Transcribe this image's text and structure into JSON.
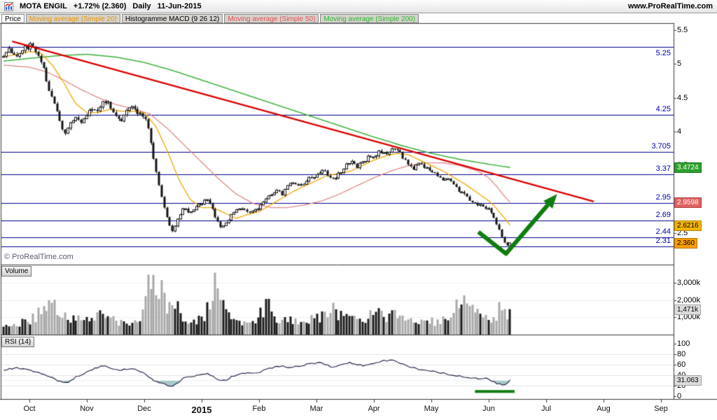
{
  "header": {
    "symbol": "MOTA ENGIL",
    "change": "+1.72% (2.360)",
    "timeframe": "Daily",
    "date": "11-Jun-2015",
    "site": "www.ProRealTime.com"
  },
  "legend": {
    "items": [
      {
        "id": "price",
        "label": "Price",
        "fg": "#000000",
        "bg": "#ffffff"
      },
      {
        "id": "ma20",
        "label": "Moving average (Simple 20)",
        "fg": "#e69500",
        "bg": "#d6d3ce"
      },
      {
        "id": "macd",
        "label": "Histogramme MACD (9 26 12)",
        "fg": "#000000",
        "bg": "#d6d3ce"
      },
      {
        "id": "ma50",
        "label": "Moving average (Simple 50)",
        "fg": "#e05050",
        "bg": "#d6d3ce"
      },
      {
        "id": "ma200",
        "label": "Moving average (Simple 200)",
        "fg": "#2db52d",
        "bg": "#d6d3ce"
      }
    ]
  },
  "panes": {
    "volume_label": "Volume",
    "rsi_label": "RSI (14)"
  },
  "copyright": "© ProRealTime.com",
  "chart_data": {
    "type": "candlestick",
    "title": "MOTA ENGIL Daily 11-Jun-2015",
    "last_price": 2.36,
    "change_pct": 1.72,
    "x_axis": {
      "labels": [
        "Oct",
        "Nov",
        "Dec",
        "2015",
        "Feb",
        "Mar",
        "Apr",
        "May",
        "Jun",
        "Jul",
        "Aug",
        "Sep"
      ],
      "bold_index": 3,
      "unit": "months from 2014-10-01"
    },
    "price_axis": {
      "range": [
        2.05,
        5.6
      ],
      "ticks": [
        "5.5",
        "5",
        "4.5",
        "4",
        "3.5",
        "2.5"
      ],
      "tick_values": [
        5.5,
        5,
        4.5,
        4,
        3.5,
        2.5
      ]
    },
    "support_resistance_levels": [
      5.25,
      4.25,
      3.705,
      3.37,
      2.95,
      2.69,
      2.44,
      2.31
    ],
    "level_color": "#00008c",
    "axis_value_boxes": [
      {
        "label": "3.4724",
        "value": 3.4724,
        "series": "ma200",
        "bg": "#2ca02c",
        "fg": "#ffffff"
      },
      {
        "label": "2.9598",
        "value": 2.9598,
        "series": "ma50",
        "bg": "#e06060",
        "fg": "#ffffff"
      },
      {
        "label": "2.6216",
        "value": 2.6216,
        "series": "ma20",
        "bg": "#f2b300",
        "fg": "#000000"
      },
      {
        "label": "2.360",
        "value": 2.36,
        "series": "last-price",
        "bg": "#f59d00",
        "fg": "#000000"
      }
    ],
    "series_colors": {
      "ma20": "#f0a800",
      "ma50": "#e08a8a",
      "ma200": "#46b446",
      "candle": "#141414",
      "trend_line": "#dd0000",
      "annotation": "#0e7d0e"
    },
    "close_path": [
      [
        -0.45,
        5.15
      ],
      [
        -0.35,
        5.22
      ],
      [
        -0.25,
        5.12
      ],
      [
        -0.15,
        5.18
      ],
      [
        -0.05,
        5.25
      ],
      [
        0.05,
        5.28
      ],
      [
        0.15,
        5.1
      ],
      [
        0.25,
        4.92
      ],
      [
        0.35,
        4.6
      ],
      [
        0.45,
        4.35
      ],
      [
        0.55,
        4.1
      ],
      [
        0.62,
        3.97
      ],
      [
        0.7,
        4.12
      ],
      [
        0.8,
        4.22
      ],
      [
        0.9,
        4.12
      ],
      [
        1.0,
        4.26
      ],
      [
        1.1,
        4.35
      ],
      [
        1.2,
        4.3
      ],
      [
        1.3,
        4.48
      ],
      [
        1.4,
        4.38
      ],
      [
        1.5,
        4.22
      ],
      [
        1.6,
        4.18
      ],
      [
        1.7,
        4.32
      ],
      [
        1.8,
        4.36
      ],
      [
        1.9,
        4.28
      ],
      [
        2.0,
        4.22
      ],
      [
        2.08,
        4.0
      ],
      [
        2.16,
        3.62
      ],
      [
        2.24,
        3.25
      ],
      [
        2.32,
        3.0
      ],
      [
        2.4,
        2.72
      ],
      [
        2.48,
        2.52
      ],
      [
        2.55,
        2.62
      ],
      [
        2.62,
        2.78
      ],
      [
        2.7,
        2.92
      ],
      [
        2.78,
        2.8
      ],
      [
        2.86,
        2.86
      ],
      [
        2.94,
        2.92
      ],
      [
        3.02,
        2.96
      ],
      [
        3.1,
        3.02
      ],
      [
        3.18,
        2.86
      ],
      [
        3.26,
        2.7
      ],
      [
        3.34,
        2.58
      ],
      [
        3.42,
        2.66
      ],
      [
        3.5,
        2.74
      ],
      [
        3.6,
        2.84
      ],
      [
        3.7,
        2.88
      ],
      [
        3.8,
        2.8
      ],
      [
        3.9,
        2.84
      ],
      [
        4.0,
        2.88
      ],
      [
        4.1,
        2.98
      ],
      [
        4.2,
        3.06
      ],
      [
        4.3,
        3.14
      ],
      [
        4.4,
        3.08
      ],
      [
        4.5,
        3.2
      ],
      [
        4.6,
        3.26
      ],
      [
        4.7,
        3.18
      ],
      [
        4.8,
        3.26
      ],
      [
        4.9,
        3.32
      ],
      [
        5.0,
        3.36
      ],
      [
        5.1,
        3.44
      ],
      [
        5.2,
        3.36
      ],
      [
        5.3,
        3.28
      ],
      [
        5.4,
        3.38
      ],
      [
        5.5,
        3.5
      ],
      [
        5.6,
        3.56
      ],
      [
        5.7,
        3.48
      ],
      [
        5.8,
        3.56
      ],
      [
        5.9,
        3.62
      ],
      [
        6.0,
        3.64
      ],
      [
        6.1,
        3.7
      ],
      [
        6.2,
        3.66
      ],
      [
        6.3,
        3.72
      ],
      [
        6.4,
        3.74
      ],
      [
        6.5,
        3.62
      ],
      [
        6.6,
        3.52
      ],
      [
        6.7,
        3.46
      ],
      [
        6.8,
        3.52
      ],
      [
        6.9,
        3.48
      ],
      [
        7.0,
        3.44
      ],
      [
        7.1,
        3.36
      ],
      [
        7.2,
        3.28
      ],
      [
        7.3,
        3.3
      ],
      [
        7.4,
        3.22
      ],
      [
        7.5,
        3.12
      ],
      [
        7.6,
        3.06
      ],
      [
        7.7,
        2.98
      ],
      [
        7.8,
        2.94
      ],
      [
        7.9,
        2.9
      ],
      [
        8.0,
        2.86
      ],
      [
        8.08,
        2.74
      ],
      [
        8.16,
        2.58
      ],
      [
        8.24,
        2.44
      ],
      [
        8.3,
        2.34
      ],
      [
        8.34,
        2.31
      ],
      [
        8.37,
        2.36
      ]
    ],
    "ma20_path": [
      [
        -0.45,
        5.1
      ],
      [
        0,
        5.18
      ],
      [
        0.2,
        5.16
      ],
      [
        0.4,
        4.98
      ],
      [
        0.6,
        4.72
      ],
      [
        0.8,
        4.42
      ],
      [
        1.0,
        4.28
      ],
      [
        1.2,
        4.28
      ],
      [
        1.4,
        4.33
      ],
      [
        1.6,
        4.3
      ],
      [
        1.8,
        4.3
      ],
      [
        2.0,
        4.28
      ],
      [
        2.2,
        4.08
      ],
      [
        2.4,
        3.72
      ],
      [
        2.6,
        3.3
      ],
      [
        2.8,
        3.0
      ],
      [
        3.0,
        2.88
      ],
      [
        3.2,
        2.88
      ],
      [
        3.4,
        2.8
      ],
      [
        3.6,
        2.72
      ],
      [
        3.8,
        2.78
      ],
      [
        4.0,
        2.82
      ],
      [
        4.2,
        2.92
      ],
      [
        4.4,
        3.02
      ],
      [
        4.6,
        3.12
      ],
      [
        4.8,
        3.2
      ],
      [
        5.0,
        3.28
      ],
      [
        5.2,
        3.36
      ],
      [
        5.4,
        3.38
      ],
      [
        5.6,
        3.42
      ],
      [
        5.8,
        3.5
      ],
      [
        6.0,
        3.58
      ],
      [
        6.2,
        3.64
      ],
      [
        6.4,
        3.68
      ],
      [
        6.6,
        3.66
      ],
      [
        6.8,
        3.58
      ],
      [
        7.0,
        3.5
      ],
      [
        7.2,
        3.42
      ],
      [
        7.4,
        3.32
      ],
      [
        7.6,
        3.22
      ],
      [
        7.8,
        3.1
      ],
      [
        8.0,
        2.98
      ],
      [
        8.1,
        2.9
      ],
      [
        8.2,
        2.8
      ],
      [
        8.3,
        2.7
      ],
      [
        8.37,
        2.6216
      ]
    ],
    "ma50_path": [
      [
        -0.45,
        4.98
      ],
      [
        0,
        4.95
      ],
      [
        0.3,
        4.88
      ],
      [
        0.6,
        4.76
      ],
      [
        0.9,
        4.62
      ],
      [
        1.2,
        4.5
      ],
      [
        1.5,
        4.4
      ],
      [
        1.8,
        4.34
      ],
      [
        2.1,
        4.26
      ],
      [
        2.4,
        4.05
      ],
      [
        2.7,
        3.8
      ],
      [
        3.0,
        3.55
      ],
      [
        3.3,
        3.3
      ],
      [
        3.6,
        3.08
      ],
      [
        3.9,
        2.94
      ],
      [
        4.2,
        2.88
      ],
      [
        4.5,
        2.88
      ],
      [
        4.8,
        2.92
      ],
      [
        5.1,
        2.98
      ],
      [
        5.4,
        3.08
      ],
      [
        5.7,
        3.2
      ],
      [
        6.0,
        3.32
      ],
      [
        6.3,
        3.42
      ],
      [
        6.6,
        3.5
      ],
      [
        6.9,
        3.54
      ],
      [
        7.2,
        3.54
      ],
      [
        7.5,
        3.5
      ],
      [
        7.8,
        3.42
      ],
      [
        8.0,
        3.32
      ],
      [
        8.15,
        3.18
      ],
      [
        8.28,
        3.04
      ],
      [
        8.37,
        2.9598
      ]
    ],
    "ma200_path": [
      [
        -0.45,
        5.04
      ],
      [
        0,
        5.08
      ],
      [
        0.5,
        5.12
      ],
      [
        1.0,
        5.14
      ],
      [
        1.5,
        5.1
      ],
      [
        2.0,
        5.02
      ],
      [
        2.5,
        4.9
      ],
      [
        3.0,
        4.76
      ],
      [
        3.5,
        4.62
      ],
      [
        4.0,
        4.48
      ],
      [
        4.5,
        4.34
      ],
      [
        5.0,
        4.2
      ],
      [
        5.5,
        4.06
      ],
      [
        6.0,
        3.92
      ],
      [
        6.5,
        3.79
      ],
      [
        7.0,
        3.68
      ],
      [
        7.5,
        3.59
      ],
      [
        8.0,
        3.52
      ],
      [
        8.37,
        3.4724
      ]
    ],
    "trend_line": {
      "from": [
        -0.3,
        5.33
      ],
      "to": [
        9.83,
        2.97
      ]
    },
    "arrow_annotation": {
      "points": [
        [
          7.82,
          2.52
        ],
        [
          8.3,
          2.2
        ],
        [
          9.15,
          3.04
        ]
      ]
    },
    "volume": {
      "ticks": [
        {
          "label": "3,000k",
          "value": 3000
        },
        {
          "label": "2,000k",
          "value": 2000
        },
        {
          "label": "1,000k",
          "value": 1000
        }
      ],
      "current": {
        "label": "1,471k",
        "value": 1471,
        "bg": "#dcdcdc",
        "fg": "#000000"
      },
      "up_color": "#1a1a1a",
      "down_color": "#a8a8a8",
      "path_k": [
        [
          -0.45,
          500
        ],
        [
          -0.2,
          650
        ],
        [
          0,
          800
        ],
        [
          0.2,
          1300
        ],
        [
          0.35,
          1700
        ],
        [
          0.5,
          1500
        ],
        [
          0.7,
          1100
        ],
        [
          0.9,
          800
        ],
        [
          1.1,
          1000
        ],
        [
          1.3,
          1200
        ],
        [
          1.5,
          800
        ],
        [
          1.7,
          600
        ],
        [
          1.9,
          800
        ],
        [
          2.0,
          1200
        ],
        [
          2.08,
          2800
        ],
        [
          2.15,
          3600
        ],
        [
          2.25,
          2600
        ],
        [
          2.4,
          1800
        ],
        [
          2.55,
          1500
        ],
        [
          2.7,
          1100
        ],
        [
          2.85,
          900
        ],
        [
          3.0,
          1000
        ],
        [
          3.15,
          1600
        ],
        [
          3.27,
          3100
        ],
        [
          3.38,
          1500
        ],
        [
          3.5,
          900
        ],
        [
          3.7,
          700
        ],
        [
          3.9,
          800
        ],
        [
          4.05,
          1500
        ],
        [
          4.15,
          1900
        ],
        [
          4.3,
          1000
        ],
        [
          4.5,
          800
        ],
        [
          4.7,
          700
        ],
        [
          4.9,
          900
        ],
        [
          5.1,
          1100
        ],
        [
          5.3,
          1400
        ],
        [
          5.5,
          900
        ],
        [
          5.7,
          800
        ],
        [
          5.9,
          1000
        ],
        [
          6.1,
          1300
        ],
        [
          6.3,
          1100
        ],
        [
          6.5,
          900
        ],
        [
          6.7,
          700
        ],
        [
          6.9,
          600
        ],
        [
          7.1,
          800
        ],
        [
          7.3,
          900
        ],
        [
          7.5,
          2200
        ],
        [
          7.6,
          2400
        ],
        [
          7.7,
          1400
        ],
        [
          7.85,
          1000
        ],
        [
          8.0,
          900
        ],
        [
          8.1,
          1200
        ],
        [
          8.2,
          1400
        ],
        [
          8.3,
          1100
        ],
        [
          8.37,
          1471
        ]
      ]
    },
    "rsi": {
      "period_label": "RSI (14)",
      "ticks": [
        100,
        80,
        60,
        40,
        20,
        0
      ],
      "current": {
        "label": "31.063",
        "value": 31.063,
        "bg": "#dcdcdc",
        "fg": "#000000"
      },
      "oversold_fill": "rgba(96,156,156,0.55)",
      "annotation_line": {
        "from": [
          7.76,
          9
        ],
        "to": [
          8.45,
          9
        ]
      },
      "path": [
        [
          -0.45,
          50
        ],
        [
          -0.25,
          54
        ],
        [
          0,
          50
        ],
        [
          0.2,
          44
        ],
        [
          0.4,
          34
        ],
        [
          0.55,
          27
        ],
        [
          0.68,
          26
        ],
        [
          0.8,
          36
        ],
        [
          1.0,
          47
        ],
        [
          1.15,
          54
        ],
        [
          1.3,
          58
        ],
        [
          1.45,
          52
        ],
        [
          1.6,
          49
        ],
        [
          1.75,
          53
        ],
        [
          1.9,
          49
        ],
        [
          2.0,
          44
        ],
        [
          2.1,
          34
        ],
        [
          2.25,
          26
        ],
        [
          2.4,
          21
        ],
        [
          2.5,
          19
        ],
        [
          2.6,
          28
        ],
        [
          2.7,
          35
        ],
        [
          2.85,
          38
        ],
        [
          3.0,
          41
        ],
        [
          3.1,
          44
        ],
        [
          3.2,
          37
        ],
        [
          3.3,
          31
        ],
        [
          3.4,
          29
        ],
        [
          3.5,
          36
        ],
        [
          3.65,
          42
        ],
        [
          3.8,
          45
        ],
        [
          3.95,
          44
        ],
        [
          4.1,
          50
        ],
        [
          4.25,
          56
        ],
        [
          4.4,
          58
        ],
        [
          4.55,
          54
        ],
        [
          4.7,
          58
        ],
        [
          4.85,
          61
        ],
        [
          5.0,
          63
        ],
        [
          5.1,
          64
        ],
        [
          5.25,
          56
        ],
        [
          5.4,
          59
        ],
        [
          5.55,
          64
        ],
        [
          5.7,
          61
        ],
        [
          5.85,
          58
        ],
        [
          6.0,
          62
        ],
        [
          6.15,
          67
        ],
        [
          6.3,
          69
        ],
        [
          6.45,
          64
        ],
        [
          6.6,
          57
        ],
        [
          6.75,
          52
        ],
        [
          6.9,
          49
        ],
        [
          7.05,
          47
        ],
        [
          7.2,
          44
        ],
        [
          7.35,
          41
        ],
        [
          7.5,
          38
        ],
        [
          7.65,
          35
        ],
        [
          7.8,
          33
        ],
        [
          7.95,
          35
        ],
        [
          8.05,
          29
        ],
        [
          8.15,
          24
        ],
        [
          8.25,
          21
        ],
        [
          8.32,
          25
        ],
        [
          8.37,
          31.06
        ]
      ]
    }
  }
}
